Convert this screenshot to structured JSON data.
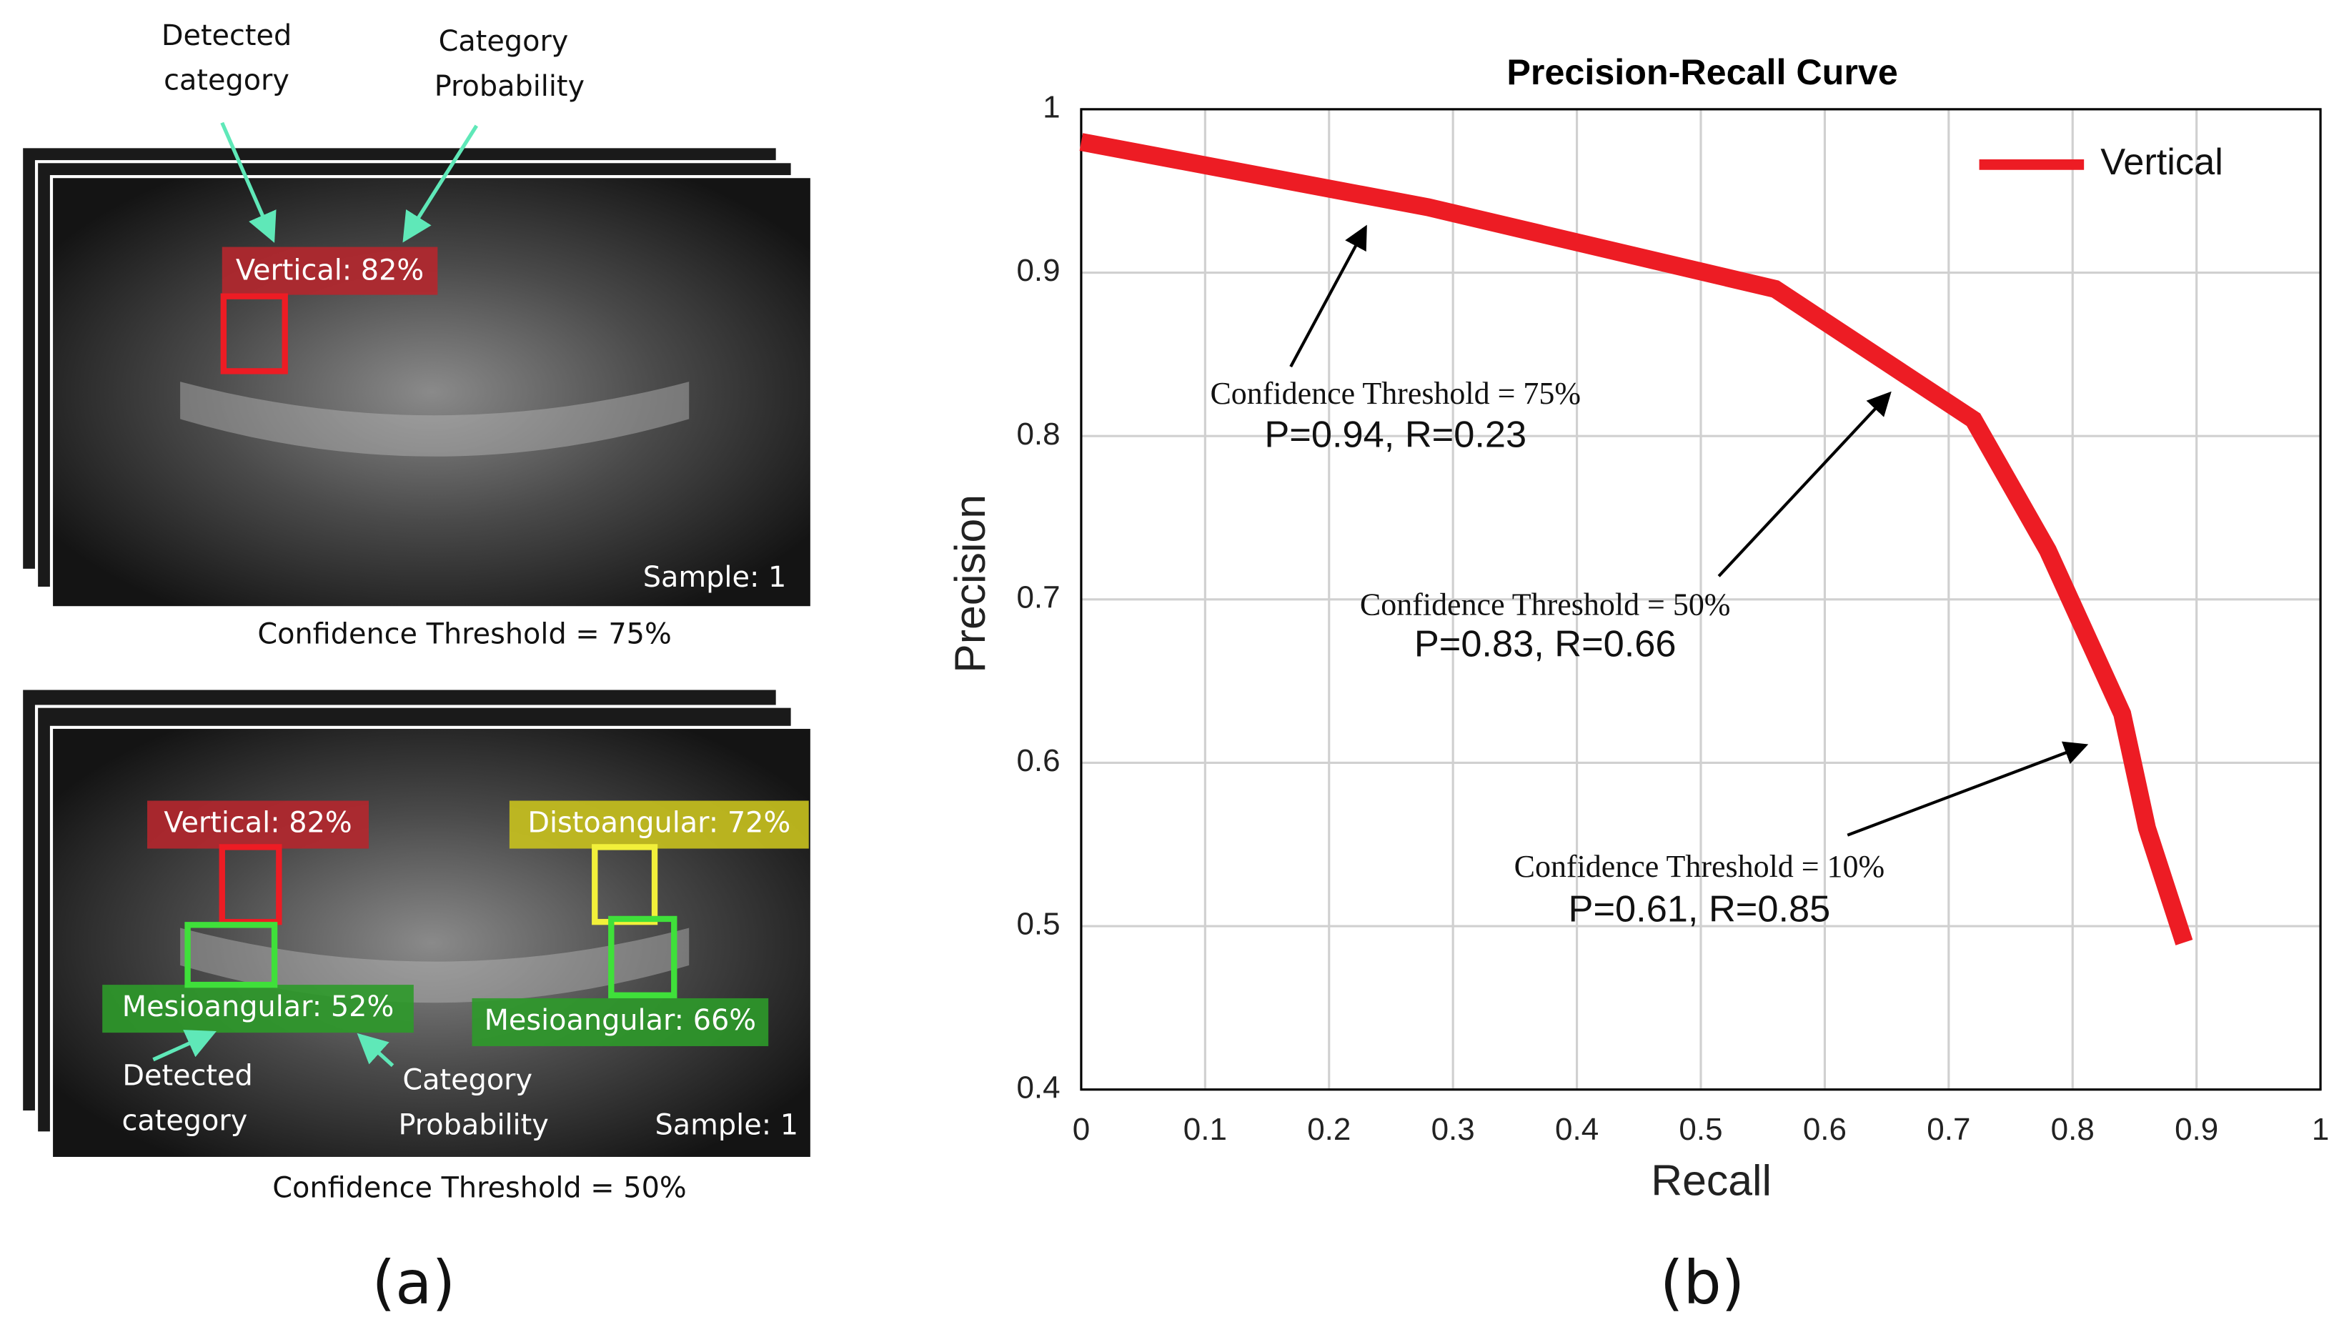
{
  "panel_a": {
    "top": {
      "callouts": [
        [
          "Detected",
          "category"
        ],
        [
          "Category",
          "Probability"
        ]
      ],
      "detections": [
        "Vertical: 82%"
      ],
      "sample": "Sample: 1",
      "threshold": "Confidence Threshold = 75%"
    },
    "bottom": {
      "callouts": [
        [
          "Detected",
          "category"
        ],
        [
          "Category",
          "Probability"
        ]
      ],
      "detections": [
        "Vertical: 82%",
        "Distoangular: 72%",
        "Mesioangular: 52%",
        "Mesioangular: 66%"
      ],
      "sample": "Sample: 1",
      "threshold": "Confidence Threshold = 50%"
    },
    "caption": "(a)"
  },
  "chart_data": {
    "type": "line",
    "title": "Precision-Recall Curve",
    "xlabel": "Recall",
    "ylabel": "Precision",
    "x": [
      0,
      0.28,
      0.56,
      0.72,
      0.78,
      0.84,
      0.86,
      0.89
    ],
    "series": [
      {
        "name": "Vertical",
        "color": "#ed1c24",
        "values": [
          0.98,
          0.94,
          0.89,
          0.81,
          0.73,
          0.63,
          0.56,
          0.49
        ]
      }
    ],
    "xlim": [
      0,
      1
    ],
    "ylim": [
      0.4,
      1
    ],
    "xticks": [
      0,
      0.1,
      0.2,
      0.3,
      0.4,
      0.5,
      0.6,
      0.7,
      0.8,
      0.9,
      1
    ],
    "yticks": [
      0.4,
      0.5,
      0.6,
      0.7,
      0.8,
      0.9,
      1
    ],
    "grid": true,
    "legend": "upper right",
    "annotations": [
      {
        "text": "Confidence Threshold = 75%",
        "detail": "P=0.94, R=0.23"
      },
      {
        "text": "Confidence Threshold = 50%",
        "detail": "P=0.83, R=0.66"
      },
      {
        "text": "Confidence Threshold = 10%",
        "detail": "P=0.61, R=0.85"
      }
    ],
    "caption": "(b)"
  }
}
